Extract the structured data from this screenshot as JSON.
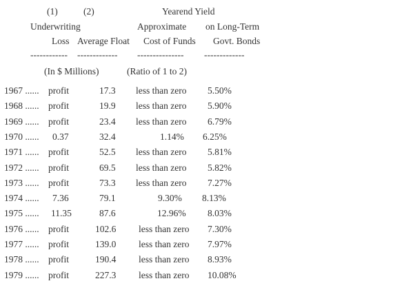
{
  "header": {
    "col1_num": "(1)",
    "col2_num": "(2)",
    "yield_line1": "Yearend Yield",
    "col1_line2": "Underwriting",
    "col3_line2": "Approximate",
    "col4_line2": "on Long-Term",
    "col1_line3": "Loss",
    "col2_line3": "Average Float",
    "col3_line3": "Cost of Funds",
    "col4_line3": "Govt. Bonds",
    "dash1": "------------",
    "dash2": "-------------",
    "dash3": "---------------",
    "dash4": "-------------",
    "units_left": "(In $ Millions)",
    "units_right": "(Ratio of 1 to 2)"
  },
  "rows": [
    {
      "year": "1967 ......",
      "loss": "profit",
      "float": "17.3",
      "cost": "less than zero",
      "bonds": "5.50%"
    },
    {
      "year": "1968 ......",
      "loss": "profit",
      "float": "19.9",
      "cost": "less than zero",
      "bonds": "5.90%"
    },
    {
      "year": "1969 ......",
      "loss": "profit",
      "float": "23.4",
      "cost": "less than zero",
      "bonds": "6.79%"
    },
    {
      "year": "1970 ......",
      "loss": "0.37",
      "float": "32.4",
      "cost": "1.14%",
      "bonds": "6.25%"
    },
    {
      "year": "1971 ......",
      "loss": "profit",
      "float": "52.5",
      "cost": "less than zero",
      "bonds": "5.81%"
    },
    {
      "year": "1972 ......",
      "loss": "profit",
      "float": "69.5",
      "cost": "less than zero",
      "bonds": "5.82%"
    },
    {
      "year": "1973 ......",
      "loss": "profit",
      "float": "73.3",
      "cost": "less than zero",
      "bonds": "7.27%"
    },
    {
      "year": "1974 ......",
      "loss": "7.36",
      "float": "79.1",
      "cost": "9.30%",
      "bonds": "8.13%"
    },
    {
      "year": "1975 ......",
      "loss": "11.35",
      "float": "87.6",
      "cost": "12.96%",
      "bonds": "8.03%"
    },
    {
      "year": "1976 ......",
      "loss": "profit",
      "float": "102.6",
      "cost": "less than zero",
      "bonds": "7.30%"
    },
    {
      "year": "1977 ......",
      "loss": "profit",
      "float": "139.0",
      "cost": "less than zero",
      "bonds": "7.97%"
    },
    {
      "year": "1978 ......",
      "loss": "profit",
      "float": "190.4",
      "cost": "less than zero",
      "bonds": "8.93%"
    },
    {
      "year": "1979 ......",
      "loss": "profit",
      "float": "227.3",
      "cost": "less than zero",
      "bonds": "10.08%"
    }
  ]
}
